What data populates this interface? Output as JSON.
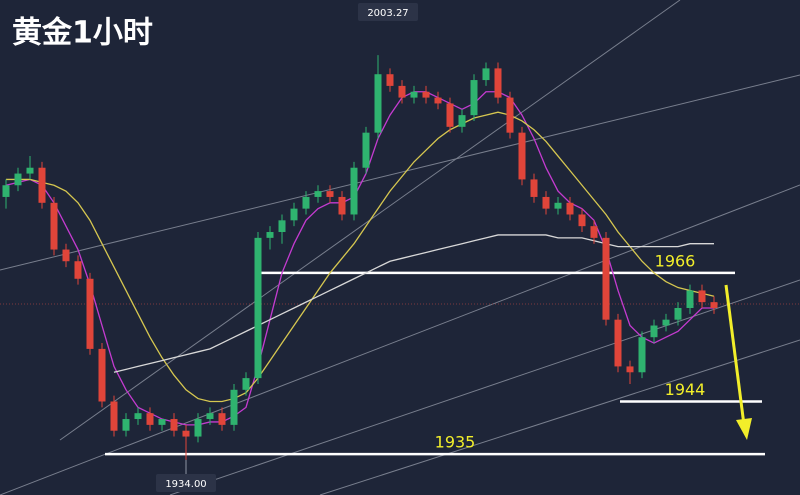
{
  "chart_data": {
    "type": "candlestick",
    "title": "黄金1小时",
    "up_color": "#2fb36f",
    "down_color": "#e0453a",
    "ylim": [
      1928,
      2012.7
    ],
    "open": [
      1979,
      1981,
      1983,
      1984,
      1978,
      1970,
      1968,
      1965,
      1953,
      1944,
      1939,
      1941,
      1942,
      1940,
      1941,
      1939,
      1938,
      1941,
      1942,
      1940,
      1946,
      1948,
      1972,
      1973,
      1975,
      1977,
      1979,
      1980,
      1979,
      1976,
      1984,
      1990,
      2000,
      1998,
      1996,
      1997,
      1996,
      1995,
      1991,
      1993,
      1999,
      2001,
      1996,
      1990,
      1982,
      1979,
      1977,
      1978,
      1976,
      1974,
      1972,
      1958,
      1950,
      1949,
      1955,
      1957,
      1958,
      1960,
      1963,
      1961
    ],
    "high": [
      1982,
      1984,
      1986,
      1985,
      1979,
      1971,
      1969,
      1966,
      1954,
      1945,
      1942,
      1943,
      1943,
      1941,
      1942,
      1940,
      1942,
      1943,
      1943,
      1947,
      1949,
      1973,
      1974,
      1976,
      1978,
      1980,
      1981,
      1981,
      1980,
      1985,
      1991,
      2003.27,
      2001,
      1999,
      1998,
      1998,
      1997,
      1996,
      1994,
      2000,
      2002,
      2002,
      1997,
      1991,
      1983,
      1980,
      1979,
      1979,
      1977,
      1975,
      1973,
      1959,
      1951,
      1956,
      1958,
      1959,
      1961,
      1964,
      1964,
      1962
    ],
    "low": [
      1977,
      1980,
      1982,
      1977,
      1969,
      1967,
      1964,
      1952,
      1943,
      1938,
      1938,
      1940,
      1939,
      1939,
      1938,
      1934,
      1937,
      1940,
      1939,
      1939,
      1945,
      1947,
      1970,
      1971,
      1974,
      1976,
      1978,
      1978,
      1975,
      1975,
      1983,
      1989,
      1997,
      1995,
      1995,
      1995,
      1994,
      1990,
      1990,
      1992,
      1998,
      1995,
      1989,
      1981,
      1978,
      1976,
      1976,
      1975,
      1973,
      1971,
      1957,
      1949,
      1947,
      1948,
      1954,
      1956,
      1957,
      1959,
      1960,
      1959
    ],
    "close": [
      1981,
      1983,
      1984,
      1978,
      1970,
      1968,
      1965,
      1953,
      1944,
      1939,
      1941,
      1942,
      1940,
      1941,
      1939,
      1938,
      1941,
      1942,
      1940,
      1946,
      1948,
      1972,
      1973,
      1975,
      1977,
      1979,
      1980,
      1979,
      1976,
      1984,
      1990,
      2000,
      1998,
      1996,
      1997,
      1996,
      1995,
      1991,
      1993,
      1999,
      2001,
      1996,
      1990,
      1982,
      1979,
      1977,
      1978,
      1976,
      1974,
      1972,
      1958,
      1950,
      1949,
      1955,
      1957,
      1958,
      1960,
      1963,
      1961,
      1960
    ],
    "series": [
      {
        "color": "#c43bd0",
        "values": [
          1981,
          1981.5,
          1982,
          1981,
          1978,
          1974,
          1970,
          1964,
          1957,
          1950,
          1946,
          1943,
          1942,
          1941,
          1940.5,
          1940,
          1940,
          1940.5,
          1940.5,
          1941.5,
          1943,
          1950,
          1958,
          1966,
          1971,
          1975,
          1977,
          1978,
          1978,
          1979,
          1983,
          1989,
          1993,
          1996,
          1997,
          1997,
          1996,
          1995,
          1994,
          1995,
          1997,
          1997,
          1996,
          1993,
          1989,
          1984,
          1980,
          1978,
          1977,
          1975,
          1970,
          1963,
          1957,
          1955,
          1954,
          1955,
          1956,
          1958,
          1960,
          1960
        ]
      },
      {
        "color": "#d6c750",
        "values": [
          1982,
          1982,
          1982,
          1981.5,
          1981,
          1980,
          1978,
          1975,
          1971,
          1967,
          1963,
          1959,
          1955,
          1951.5,
          1948.5,
          1946,
          1944.5,
          1944,
          1944,
          1944.5,
          1945.5,
          1948,
          1951,
          1954,
          1957,
          1960,
          1963,
          1966,
          1968.5,
          1971,
          1974,
          1977,
          1980,
          1982.5,
          1985,
          1987,
          1989,
          1990.5,
          1991.5,
          1992.5,
          1993,
          1993.5,
          1993,
          1992,
          1990.5,
          1988.5,
          1986,
          1983.5,
          1981,
          1978.5,
          1976,
          1973,
          1970.5,
          1968,
          1966,
          1964.5,
          1963.5,
          1963,
          1962.5,
          1962
        ]
      },
      {
        "color": "#d8d8d8",
        "values": [
          null,
          null,
          null,
          null,
          null,
          null,
          null,
          null,
          null,
          1949,
          1949.5,
          1950,
          1950.5,
          1951,
          1951.5,
          1952,
          1952.5,
          1953,
          1954,
          1955,
          1956,
          1957,
          1958,
          1959,
          1960,
          1961,
          1962,
          1963,
          1964,
          1965,
          1966,
          1967,
          1968,
          1968.5,
          1969,
          1969.5,
          1970,
          1970.5,
          1971,
          1971.5,
          1972,
          1972.5,
          1972.5,
          1972.5,
          1972.5,
          1972.5,
          1972,
          1972,
          1972,
          1971.5,
          1971,
          1970.5,
          1970.5,
          1970.5,
          1970.5,
          1970.5,
          1970.5,
          1971,
          1971,
          1971
        ]
      }
    ],
    "levels": [
      1966,
      1944,
      1935
    ],
    "high_label": 2003.27,
    "low_label": {
      "value": 1934,
      "label": "1934.00"
    }
  }
}
